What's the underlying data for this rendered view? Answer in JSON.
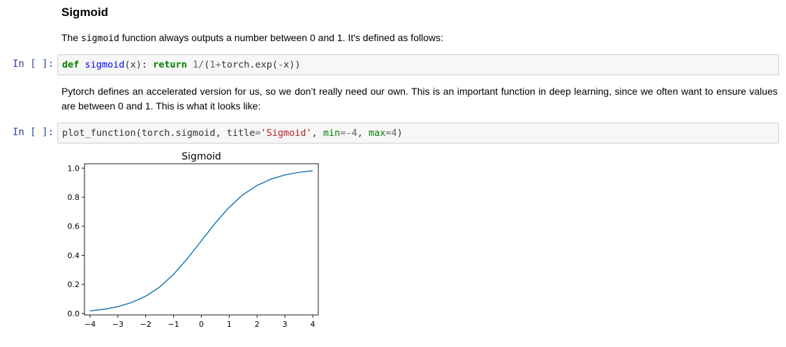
{
  "heading": "Sigmoid",
  "para1": {
    "pre": "The ",
    "code": "sigmoid",
    "post": " function always outputs a number between 0 and 1. It's defined as follows:"
  },
  "cell1": {
    "prompt": "In [ ]:",
    "tokens": [
      {
        "t": "def",
        "c": "kw"
      },
      {
        "t": " ",
        "c": "tok"
      },
      {
        "t": "sigmoid",
        "c": "fn"
      },
      {
        "t": "(x): ",
        "c": "tok"
      },
      {
        "t": "return",
        "c": "kw"
      },
      {
        "t": " ",
        "c": "tok"
      },
      {
        "t": "1",
        "c": "num"
      },
      {
        "t": "/",
        "c": "op"
      },
      {
        "t": "(",
        "c": "tok"
      },
      {
        "t": "1",
        "c": "num"
      },
      {
        "t": "+",
        "c": "op"
      },
      {
        "t": "torch.exp(",
        "c": "tok"
      },
      {
        "t": "-",
        "c": "op"
      },
      {
        "t": "x))",
        "c": "tok"
      }
    ]
  },
  "para2": "Pytorch defines an accelerated version for us, so we don’t really need our own. This is an important function in deep learning, since we often want to ensure values are between 0 and 1. This is what it looks like:",
  "cell2": {
    "prompt": "In [ ]:",
    "tokens": [
      {
        "t": "plot_function(torch.sigmoid, title",
        "c": "tok"
      },
      {
        "t": "=",
        "c": "op"
      },
      {
        "t": "'Sigmoid'",
        "c": "str"
      },
      {
        "t": ", ",
        "c": "tok"
      },
      {
        "t": "min",
        "c": "kwarg"
      },
      {
        "t": "=",
        "c": "op"
      },
      {
        "t": "-4",
        "c": "num"
      },
      {
        "t": ", ",
        "c": "tok"
      },
      {
        "t": "max",
        "c": "kwarg"
      },
      {
        "t": "=",
        "c": "op"
      },
      {
        "t": "4",
        "c": "num"
      },
      {
        "t": ")",
        "c": "tok"
      }
    ]
  },
  "chart_data": {
    "type": "line",
    "title": "Sigmoid",
    "xlabel": "",
    "ylabel": "",
    "xlim": [
      -4.2,
      4.2
    ],
    "ylim": [
      -0.01,
      1.03
    ],
    "xticks": [
      -4,
      -3,
      -2,
      -1,
      0,
      1,
      2,
      3,
      4
    ],
    "xtick_labels": [
      "−4",
      "−3",
      "−2",
      "−1",
      "0",
      "1",
      "2",
      "3",
      "4"
    ],
    "yticks": [
      0.0,
      0.2,
      0.4,
      0.6,
      0.8,
      1.0
    ],
    "ytick_labels": [
      "0.0",
      "0.2",
      "0.4",
      "0.6",
      "0.8",
      "1.0"
    ],
    "grid": false,
    "series": [
      {
        "color": "#1f77b4",
        "x": [
          -4,
          -3.5,
          -3,
          -2.5,
          -2,
          -1.5,
          -1,
          -0.5,
          0,
          0.5,
          1,
          1.5,
          2,
          2.5,
          3,
          3.5,
          4
        ],
        "y": [
          0.018,
          0.029,
          0.047,
          0.076,
          0.119,
          0.182,
          0.269,
          0.378,
          0.5,
          0.622,
          0.731,
          0.818,
          0.881,
          0.924,
          0.953,
          0.971,
          0.982
        ]
      }
    ]
  }
}
